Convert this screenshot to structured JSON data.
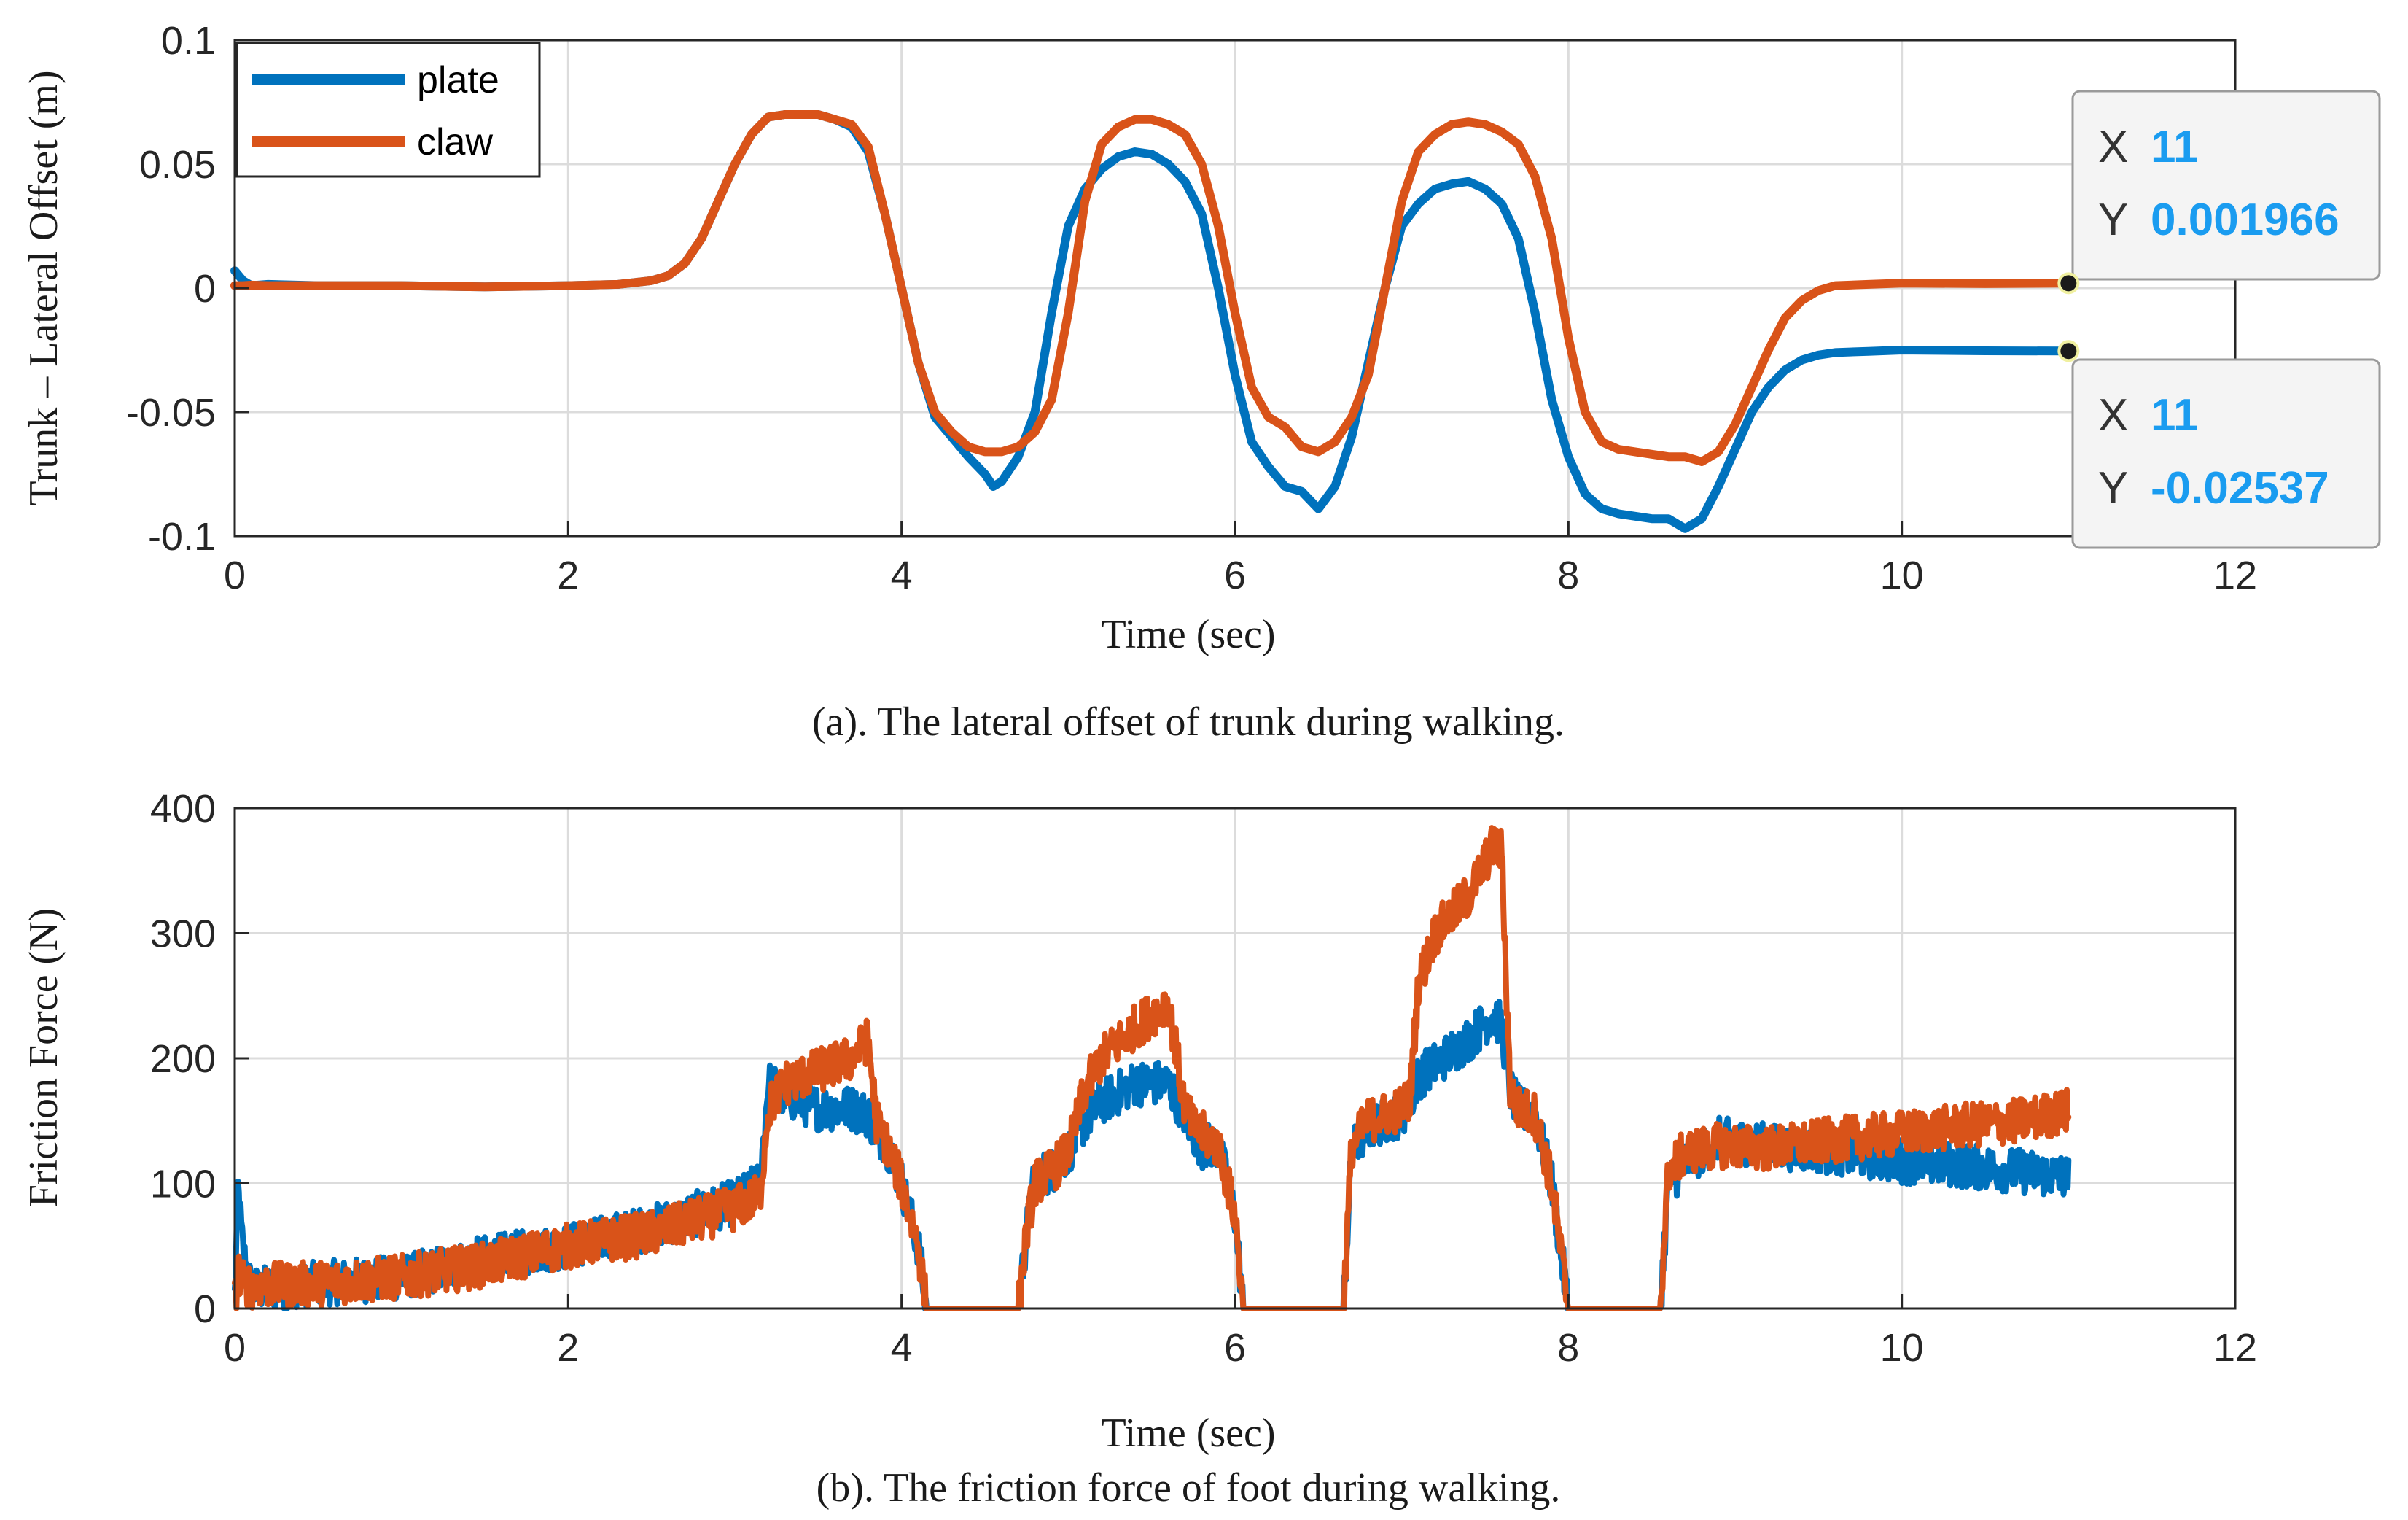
{
  "colors": {
    "plate": "#0072BD",
    "claw": "#D95319",
    "grid": "#dcdcdc",
    "axis": "#262626",
    "tip_value": "#1a9cf0"
  },
  "chart_data": [
    {
      "id": "a",
      "type": "line",
      "title": "",
      "caption": "(a). The lateral offset of trunk during walking.",
      "xlabel": "Time (sec)",
      "ylabel": "Trunk  –  Lateral Offset (m)",
      "xlim": [
        0,
        12
      ],
      "ylim": [
        -0.1,
        0.1
      ],
      "xticks": [
        0,
        2,
        4,
        6,
        8,
        10,
        12
      ],
      "xtick_labels": [
        "0",
        "2",
        "4",
        "6",
        "8",
        "10",
        "12"
      ],
      "yticks": [
        -0.1,
        -0.05,
        0,
        0.05,
        0.1
      ],
      "ytick_labels": [
        "-0.1",
        "-0.05",
        "0",
        "0.05",
        "0.1"
      ],
      "grid": true,
      "legend": {
        "position": "top-left",
        "entries": [
          "plate",
          "claw"
        ]
      },
      "series": [
        {
          "name": "plate",
          "x": [
            0,
            0.05,
            0.1,
            0.2,
            0.5,
            1,
            1.5,
            2,
            2.3,
            2.5,
            2.6,
            2.7,
            2.8,
            2.9,
            3.0,
            3.1,
            3.2,
            3.3,
            3.4,
            3.5,
            3.6,
            3.7,
            3.8,
            3.9,
            4.0,
            4.1,
            4.2,
            4.3,
            4.4,
            4.5,
            4.55,
            4.6,
            4.7,
            4.8,
            4.9,
            5.0,
            5.1,
            5.2,
            5.3,
            5.4,
            5.5,
            5.6,
            5.7,
            5.8,
            5.9,
            6.0,
            6.1,
            6.2,
            6.3,
            6.4,
            6.5,
            6.6,
            6.7,
            6.8,
            6.9,
            7.0,
            7.1,
            7.2,
            7.3,
            7.4,
            7.5,
            7.6,
            7.7,
            7.8,
            7.9,
            8.0,
            8.1,
            8.2,
            8.3,
            8.4,
            8.5,
            8.6,
            8.7,
            8.8,
            8.9,
            9.0,
            9.1,
            9.2,
            9.3,
            9.4,
            9.5,
            9.6,
            9.8,
            10.0,
            10.5,
            11.0
          ],
          "y": [
            0.007,
            0.003,
            0.001,
            0.0015,
            0.001,
            0.001,
            0.0005,
            0.001,
            0.0015,
            0.003,
            0.005,
            0.01,
            0.02,
            0.035,
            0.05,
            0.062,
            0.069,
            0.07,
            0.07,
            0.07,
            0.068,
            0.065,
            0.055,
            0.03,
            0.0,
            -0.03,
            -0.052,
            -0.06,
            -0.068,
            -0.075,
            -0.08,
            -0.078,
            -0.068,
            -0.05,
            -0.01,
            0.025,
            0.04,
            0.048,
            0.053,
            0.055,
            0.054,
            0.05,
            0.043,
            0.03,
            0.0,
            -0.035,
            -0.062,
            -0.072,
            -0.08,
            -0.082,
            -0.089,
            -0.08,
            -0.06,
            -0.03,
            0.0,
            0.025,
            0.034,
            0.04,
            0.042,
            0.043,
            0.04,
            0.034,
            0.02,
            -0.01,
            -0.045,
            -0.068,
            -0.083,
            -0.089,
            -0.091,
            -0.092,
            -0.093,
            -0.093,
            -0.097,
            -0.093,
            -0.08,
            -0.065,
            -0.05,
            -0.04,
            -0.033,
            -0.029,
            -0.027,
            -0.026,
            -0.0255,
            -0.025,
            -0.0253,
            -0.02537
          ]
        },
        {
          "name": "claw",
          "x": [
            0,
            0.05,
            0.1,
            0.2,
            0.5,
            1,
            1.5,
            2,
            2.3,
            2.5,
            2.6,
            2.7,
            2.8,
            2.9,
            3.0,
            3.1,
            3.2,
            3.3,
            3.4,
            3.5,
            3.6,
            3.7,
            3.8,
            3.9,
            4.0,
            4.1,
            4.2,
            4.3,
            4.4,
            4.5,
            4.6,
            4.7,
            4.8,
            4.9,
            5.0,
            5.1,
            5.2,
            5.3,
            5.4,
            5.5,
            5.6,
            5.7,
            5.8,
            5.9,
            6.0,
            6.1,
            6.2,
            6.3,
            6.4,
            6.5,
            6.6,
            6.7,
            6.8,
            6.9,
            7.0,
            7.1,
            7.2,
            7.3,
            7.4,
            7.5,
            7.6,
            7.7,
            7.8,
            7.9,
            8.0,
            8.1,
            8.2,
            8.3,
            8.4,
            8.5,
            8.6,
            8.7,
            8.8,
            8.9,
            9.0,
            9.1,
            9.2,
            9.3,
            9.4,
            9.5,
            9.6,
            9.8,
            10.0,
            10.5,
            11.0
          ],
          "y": [
            0.001,
            0.001,
            0.0012,
            0.001,
            0.001,
            0.001,
            0.0005,
            0.001,
            0.0015,
            0.003,
            0.005,
            0.01,
            0.02,
            0.035,
            0.05,
            0.062,
            0.069,
            0.07,
            0.07,
            0.07,
            0.068,
            0.066,
            0.057,
            0.03,
            0.0,
            -0.03,
            -0.05,
            -0.058,
            -0.064,
            -0.066,
            -0.066,
            -0.064,
            -0.058,
            -0.045,
            -0.01,
            0.035,
            0.058,
            0.065,
            0.068,
            0.068,
            0.066,
            0.062,
            0.05,
            0.025,
            -0.01,
            -0.04,
            -0.052,
            -0.056,
            -0.064,
            -0.066,
            -0.062,
            -0.052,
            -0.035,
            0.0,
            0.035,
            0.055,
            0.062,
            0.066,
            0.067,
            0.066,
            0.063,
            0.058,
            0.045,
            0.02,
            -0.02,
            -0.05,
            -0.062,
            -0.065,
            -0.066,
            -0.067,
            -0.068,
            -0.068,
            -0.07,
            -0.066,
            -0.055,
            -0.04,
            -0.025,
            -0.012,
            -0.005,
            -0.001,
            0.001,
            0.0015,
            0.002,
            0.0018,
            0.001966
          ]
        }
      ],
      "datatips": [
        {
          "series": "claw",
          "x_label": "X",
          "x": "11",
          "y_label": "Y",
          "y": "0.001966"
        },
        {
          "series": "plate",
          "x_label": "X",
          "x": "11",
          "y_label": "Y",
          "y": "-0.02537"
        }
      ]
    },
    {
      "id": "b",
      "type": "line",
      "title": "",
      "caption": "(b). The friction force of foot during walking.",
      "xlabel": "Time (sec)",
      "ylabel": "Friction Force (N)",
      "xlim": [
        0,
        12
      ],
      "ylim": [
        0,
        400
      ],
      "xticks": [
        0,
        2,
        4,
        6,
        8,
        10,
        12
      ],
      "xtick_labels": [
        "0",
        "2",
        "4",
        "6",
        "8",
        "10",
        "12"
      ],
      "yticks": [
        0,
        100,
        200,
        300,
        400
      ],
      "ytick_labels": [
        "0",
        "100",
        "200",
        "300",
        "400"
      ],
      "grid": true,
      "noise_amplitude": 18,
      "series": [
        {
          "name": "plate",
          "x": [
            0,
            0.02,
            0.05,
            0.1,
            0.5,
            1.0,
            1.5,
            2.0,
            2.5,
            3.0,
            3.15,
            3.2,
            3.3,
            3.5,
            3.7,
            3.8,
            3.85,
            3.9,
            4.0,
            4.1,
            4.15,
            4.2,
            4.5,
            4.7,
            4.75,
            4.8,
            4.9,
            5.0,
            5.1,
            5.2,
            5.4,
            5.6,
            5.7,
            5.75,
            5.8,
            5.9,
            6.0,
            6.05,
            6.1,
            6.3,
            6.65,
            6.7,
            6.8,
            7.0,
            7.05,
            7.1,
            7.2,
            7.4,
            7.55,
            7.6,
            7.65,
            7.7,
            7.8,
            7.9,
            8.0,
            8.05,
            8.3,
            8.55,
            8.6,
            8.7,
            8.9,
            9.2,
            9.6,
            10.0,
            10.3,
            10.7,
            11.0
          ],
          "y": [
            10,
            95,
            45,
            15,
            20,
            25,
            40,
            50,
            65,
            85,
            100,
            180,
            170,
            160,
            160,
            155,
            140,
            135,
            100,
            50,
            0,
            0,
            0,
            0,
            60,
            105,
            110,
            125,
            150,
            165,
            180,
            180,
            155,
            140,
            130,
            130,
            75,
            0,
            0,
            0,
            0,
            125,
            145,
            155,
            165,
            185,
            195,
            215,
            235,
            225,
            175,
            160,
            155,
            100,
            0,
            0,
            0,
            0,
            100,
            115,
            135,
            130,
            125,
            118,
            115,
            110,
            105
          ]
        },
        {
          "name": "claw",
          "x": [
            0,
            0.02,
            0.05,
            0.1,
            0.5,
            1.0,
            1.5,
            2.0,
            2.5,
            3.0,
            3.15,
            3.2,
            3.3,
            3.5,
            3.7,
            3.8,
            3.85,
            3.9,
            4.0,
            4.1,
            4.15,
            4.2,
            4.5,
            4.7,
            4.75,
            4.8,
            4.9,
            5.0,
            5.1,
            5.2,
            5.4,
            5.6,
            5.7,
            5.75,
            5.8,
            5.9,
            6.0,
            6.05,
            6.1,
            6.3,
            6.65,
            6.7,
            6.8,
            7.0,
            7.05,
            7.1,
            7.2,
            7.4,
            7.55,
            7.6,
            7.65,
            7.7,
            7.8,
            7.9,
            8.0,
            8.05,
            8.3,
            8.55,
            8.6,
            8.7,
            8.9,
            9.2,
            9.6,
            10.0,
            10.3,
            10.7,
            11.0
          ],
          "y": [
            5,
            30,
            20,
            18,
            20,
            25,
            35,
            50,
            60,
            80,
            90,
            160,
            180,
            190,
            200,
            215,
            150,
            135,
            100,
            50,
            0,
            0,
            0,
            0,
            60,
            100,
            110,
            125,
            175,
            200,
            225,
            245,
            160,
            145,
            140,
            130,
            75,
            0,
            0,
            0,
            0,
            130,
            150,
            160,
            170,
            260,
            300,
            330,
            370,
            365,
            175,
            160,
            155,
            100,
            0,
            0,
            0,
            0,
            110,
            125,
            130,
            128,
            135,
            140,
            145,
            150,
            158
          ]
        }
      ]
    }
  ]
}
